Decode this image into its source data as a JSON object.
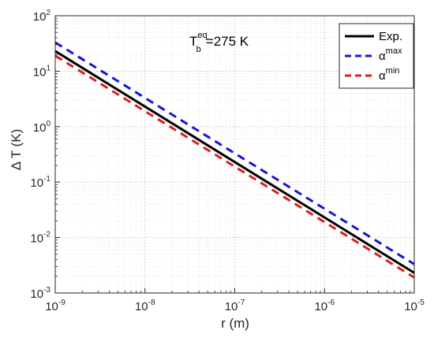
{
  "chart_data": {
    "type": "line",
    "x_scale": "log",
    "y_scale": "log",
    "xlim": [
      1e-09,
      1e-05
    ],
    "ylim": [
      0.001,
      100
    ],
    "xlabel": "r (m)",
    "ylabel": "Δ T (K)",
    "x_ticks": [
      {
        "base": "10",
        "exp": "-9",
        "value": 1e-09
      },
      {
        "base": "10",
        "exp": "-8",
        "value": 1e-08
      },
      {
        "base": "10",
        "exp": "-7",
        "value": 1e-07
      },
      {
        "base": "10",
        "exp": "-6",
        "value": 1e-06
      },
      {
        "base": "10",
        "exp": "-5",
        "value": 1e-05
      }
    ],
    "y_ticks": [
      {
        "base": "10",
        "exp": "-3",
        "value": 0.001
      },
      {
        "base": "10",
        "exp": "-2",
        "value": 0.01
      },
      {
        "base": "10",
        "exp": "-1",
        "value": 0.1
      },
      {
        "base": "10",
        "exp": "0",
        "value": 1
      },
      {
        "base": "10",
        "exp": "1",
        "value": 10
      },
      {
        "base": "10",
        "exp": "2",
        "value": 100
      }
    ],
    "grid": true,
    "minor_grid": true,
    "legend_position": "top-right",
    "annotation": {
      "main": "T",
      "sub": "b",
      "sup": "eq",
      "rest": "=275 K"
    },
    "series": [
      {
        "name": "Exp.",
        "name_base": "Exp.",
        "name_sup": "",
        "color": "#000000",
        "dash": "solid",
        "x": [
          1e-09,
          1e-05
        ],
        "y": [
          23,
          0.0023
        ]
      },
      {
        "name": "αmax",
        "name_base": "α",
        "name_sup": "max",
        "color": "#1414dc",
        "dash": "dashed",
        "x": [
          1e-09,
          1e-05
        ],
        "y": [
          33,
          0.0033
        ]
      },
      {
        "name": "αmin",
        "name_base": "α",
        "name_sup": "min",
        "color": "#dc1e1e",
        "dash": "dashed",
        "x": [
          1e-09,
          1e-05
        ],
        "y": [
          19,
          0.0019
        ]
      }
    ]
  }
}
